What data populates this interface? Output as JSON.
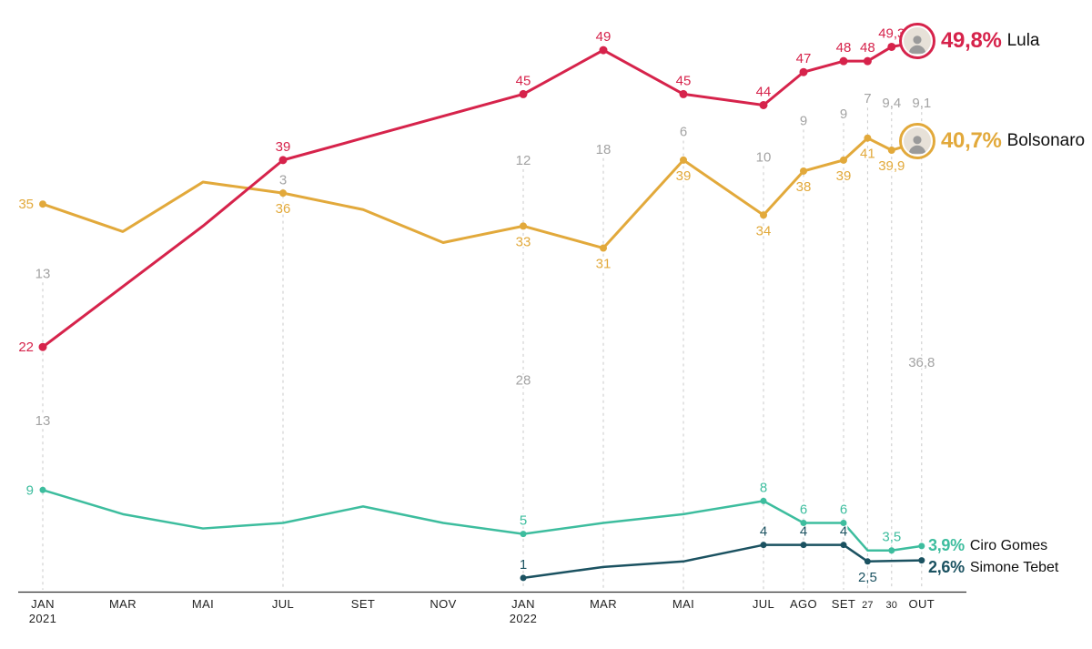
{
  "chart_data": {
    "type": "line",
    "title": "",
    "y_axis": {
      "min": 0,
      "max": 50,
      "unit": "%",
      "visible_labels": false
    },
    "style": {
      "guide_color": "#c9c9c9",
      "annotation_color": "#a3a3a3",
      "axis_color": "#333333",
      "tick_color": "#222222"
    },
    "x_axis": {
      "ticks": [
        {
          "pos": 0,
          "label": "JAN",
          "sublabel": "2021"
        },
        {
          "pos": 2,
          "label": "MAR"
        },
        {
          "pos": 4,
          "label": "MAI"
        },
        {
          "pos": 6,
          "label": "JUL"
        },
        {
          "pos": 8,
          "label": "SET"
        },
        {
          "pos": 10,
          "label": "NOV"
        },
        {
          "pos": 12,
          "label": "JAN",
          "sublabel": "2022"
        },
        {
          "pos": 14,
          "label": "MAR"
        },
        {
          "pos": 16,
          "label": "MAI"
        },
        {
          "pos": 18,
          "label": "JUL"
        },
        {
          "pos": 19,
          "label": "AGO"
        },
        {
          "pos": 20,
          "label": "SET"
        },
        {
          "pos": 20.6,
          "label": "27",
          "small": true
        },
        {
          "pos": 21.2,
          "label": "30",
          "small": true
        },
        {
          "pos": 21.95,
          "label": "OUT"
        }
      ]
    },
    "series": [
      {
        "id": "lula",
        "name": "Lula",
        "color": "#d6234b",
        "width": 3,
        "dot": 4.5,
        "points": [
          {
            "x": 0,
            "y": 22,
            "label": "22",
            "label_pos": "left"
          },
          {
            "x": 2,
            "y": 27.5
          },
          {
            "x": 4,
            "y": 33
          },
          {
            "x": 6,
            "y": 39,
            "label": "39",
            "label_pos": "above"
          },
          {
            "x": 8,
            "y": 41
          },
          {
            "x": 12,
            "y": 45,
            "label": "45",
            "label_pos": "above"
          },
          {
            "x": 14,
            "y": 49,
            "label": "49",
            "label_pos": "above"
          },
          {
            "x": 16,
            "y": 45,
            "label": "45",
            "label_pos": "above"
          },
          {
            "x": 18,
            "y": 44,
            "label": "44",
            "label_pos": "above"
          },
          {
            "x": 19,
            "y": 47,
            "label": "47",
            "label_pos": "above"
          },
          {
            "x": 20,
            "y": 48,
            "label": "48",
            "label_pos": "above"
          },
          {
            "x": 20.6,
            "y": 48,
            "label": "48",
            "label_pos": "above"
          },
          {
            "x": 21.2,
            "y": 49.3,
            "label": "49,3",
            "label_pos": "above"
          },
          {
            "x": 21.95,
            "y": 49.8
          }
        ]
      },
      {
        "id": "bolsonaro",
        "name": "Bolsonaro",
        "color": "#e2a93b",
        "width": 3,
        "dot": 4,
        "points": [
          {
            "x": 0,
            "y": 35,
            "label": "35",
            "label_pos": "left"
          },
          {
            "x": 2,
            "y": 32.5
          },
          {
            "x": 4,
            "y": 37
          },
          {
            "x": 6,
            "y": 36,
            "label": "36",
            "label_pos": "below"
          },
          {
            "x": 8,
            "y": 34.5
          },
          {
            "x": 10,
            "y": 31.5
          },
          {
            "x": 12,
            "y": 33,
            "label": "33",
            "label_pos": "below"
          },
          {
            "x": 14,
            "y": 31,
            "label": "31",
            "label_pos": "below"
          },
          {
            "x": 16,
            "y": 39,
            "label": "39",
            "label_pos": "below"
          },
          {
            "x": 18,
            "y": 34,
            "label": "34",
            "label_pos": "below"
          },
          {
            "x": 19,
            "y": 38,
            "label": "38",
            "label_pos": "below"
          },
          {
            "x": 20,
            "y": 39,
            "label": "39",
            "label_pos": "below"
          },
          {
            "x": 20.6,
            "y": 41,
            "label": "41",
            "label_pos": "below"
          },
          {
            "x": 21.2,
            "y": 39.9,
            "label": "39,9",
            "label_pos": "below"
          },
          {
            "x": 21.95,
            "y": 40.7
          }
        ]
      },
      {
        "id": "ciro",
        "name": "Ciro Gomes",
        "color": "#3dbd9e",
        "width": 2.5,
        "dot": 3.5,
        "points": [
          {
            "x": 0,
            "y": 9,
            "label": "9",
            "label_pos": "left"
          },
          {
            "x": 2,
            "y": 6.8
          },
          {
            "x": 4,
            "y": 5.5
          },
          {
            "x": 6,
            "y": 6
          },
          {
            "x": 8,
            "y": 7.5
          },
          {
            "x": 10,
            "y": 6
          },
          {
            "x": 12,
            "y": 5,
            "label": "5",
            "label_pos": "above"
          },
          {
            "x": 14,
            "y": 6
          },
          {
            "x": 16,
            "y": 6.8
          },
          {
            "x": 18,
            "y": 8,
            "label": "8",
            "label_pos": "above"
          },
          {
            "x": 19,
            "y": 6,
            "label": "6",
            "label_pos": "above"
          },
          {
            "x": 20,
            "y": 6,
            "label": "6",
            "label_pos": "above"
          },
          {
            "x": 20.6,
            "y": 3.5
          },
          {
            "x": 21.2,
            "y": 3.5,
            "label": "3,5",
            "label_pos": "above"
          },
          {
            "x": 21.95,
            "y": 3.9
          }
        ]
      },
      {
        "id": "tebet",
        "name": "Simone Tebet",
        "color": "#1b5261",
        "width": 2.5,
        "dot": 3.5,
        "points": [
          {
            "x": 12,
            "y": 1,
            "label": "1",
            "label_pos": "above"
          },
          {
            "x": 14,
            "y": 2
          },
          {
            "x": 16,
            "y": 2.5
          },
          {
            "x": 18,
            "y": 4,
            "label": "4",
            "label_pos": "above"
          },
          {
            "x": 19,
            "y": 4,
            "label": "4",
            "label_pos": "above"
          },
          {
            "x": 20,
            "y": 4,
            "label": "4",
            "label_pos": "above"
          },
          {
            "x": 20.6,
            "y": 2.5,
            "label": "2,5",
            "label_pos": "below"
          },
          {
            "x": 21.2,
            "y": 2.55
          },
          {
            "x": 21.95,
            "y": 2.6
          }
        ]
      }
    ],
    "annotations": [
      {
        "x": 0,
        "at": 28.7,
        "text": "13"
      },
      {
        "x": 0,
        "at": 15.3,
        "text": "13"
      },
      {
        "x": 6,
        "at": 37.2,
        "text": "3"
      },
      {
        "x": 12,
        "at": 39.0,
        "text": "12"
      },
      {
        "x": 12,
        "at": 19.0,
        "text": "28"
      },
      {
        "x": 14,
        "at": 40.0,
        "text": "18"
      },
      {
        "x": 16,
        "at": 41.6,
        "text": "6"
      },
      {
        "x": 18,
        "at": 39.3,
        "text": "10"
      },
      {
        "x": 19,
        "at": 42.6,
        "text": "9"
      },
      {
        "x": 20,
        "at": 43.2,
        "text": "9"
      },
      {
        "x": 20.6,
        "at": 44.6,
        "text": "7"
      },
      {
        "x": 21.2,
        "at": 44.2,
        "text": "9,4"
      },
      {
        "x": 21.95,
        "at": 44.2,
        "text": "9,1"
      },
      {
        "x": 21.95,
        "at": 20.6,
        "text": "36,8"
      }
    ]
  },
  "legend": {
    "lula": {
      "pct": "49,8%",
      "name": "Lula",
      "color": "#d6234b"
    },
    "bolsonaro": {
      "pct": "40,7%",
      "name": "Bolsonaro",
      "color": "#e2a93b"
    },
    "ciro": {
      "pct": "3,9%",
      "name": "Ciro Gomes",
      "color": "#3dbd9e"
    },
    "tebet": {
      "pct": "2,6%",
      "name": "Simone Tebet",
      "color": "#1b5261"
    }
  }
}
